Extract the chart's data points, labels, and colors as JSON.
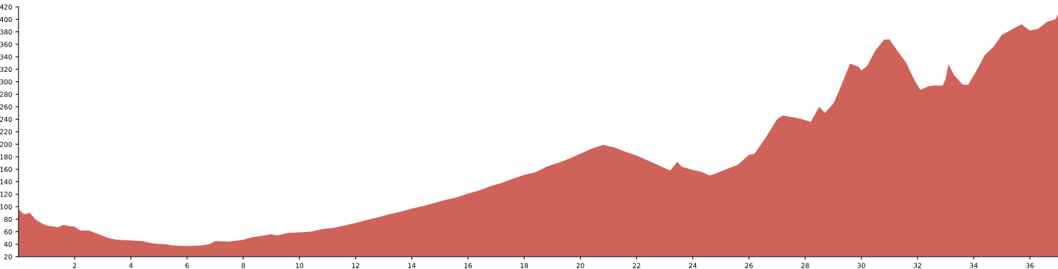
{
  "chart_data": {
    "type": "area",
    "color": "#cf635a",
    "grid": false,
    "legend": false,
    "xlim": [
      0,
      37
    ],
    "xticks": [
      2,
      4,
      6,
      8,
      10,
      12,
      14,
      16,
      18,
      20,
      22,
      24,
      26,
      28,
      30,
      32,
      34,
      36
    ],
    "ylim": [
      20,
      420
    ],
    "yticks": [
      20,
      40,
      60,
      80,
      100,
      120,
      140,
      160,
      180,
      200,
      220,
      240,
      260,
      280,
      300,
      320,
      340,
      360,
      380,
      400,
      420
    ],
    "x": [
      0,
      0.2,
      0.4,
      0.6,
      0.8,
      1.0,
      1.4,
      1.6,
      1.8,
      2.0,
      2.2,
      2.5,
      2.8,
      3.2,
      3.5,
      4.0,
      4.4,
      4.8,
      5.2,
      5.5,
      6.0,
      6.5,
      6.8,
      7.0,
      7.5,
      8.0,
      8.3,
      8.6,
      9.0,
      9.2,
      9.6,
      10.0,
      10.4,
      10.8,
      11.2,
      11.6,
      12.0,
      12.4,
      12.8,
      13.2,
      13.6,
      14.0,
      14.4,
      14.8,
      15.2,
      15.6,
      16.0,
      16.4,
      16.8,
      17.2,
      17.6,
      18.0,
      18.4,
      18.8,
      19.2,
      19.6,
      20.0,
      20.4,
      20.8,
      21.2,
      21.6,
      22.0,
      22.4,
      22.8,
      23.0,
      23.2,
      23.45,
      23.6,
      24.0,
      24.3,
      24.6,
      24.8,
      25.2,
      25.6,
      26.0,
      26.2,
      26.6,
      27.0,
      27.2,
      27.6,
      27.9,
      28.2,
      28.5,
      28.7,
      29.0,
      29.2,
      29.6,
      29.9,
      30.0,
      30.2,
      30.5,
      30.8,
      31.0,
      31.2,
      31.6,
      31.9,
      32.1,
      32.4,
      32.6,
      32.9,
      33.0,
      33.1,
      33.3,
      33.6,
      33.8,
      34.1,
      34.4,
      34.7,
      35.0,
      35.4,
      35.7,
      36.0,
      36.3,
      36.6,
      36.9,
      37.0
    ],
    "values": [
      96,
      88,
      90,
      80,
      74,
      70,
      67,
      71,
      69,
      68,
      62,
      62,
      57,
      50,
      47,
      46,
      45,
      41,
      40,
      38,
      37,
      38,
      40,
      45,
      44,
      47,
      51,
      53,
      56,
      54,
      58,
      59,
      60,
      64,
      66,
      70,
      74,
      79,
      83,
      88,
      92,
      97,
      101,
      106,
      111,
      115,
      121,
      126,
      133,
      138,
      145,
      151,
      155,
      164,
      170,
      177,
      185,
      193,
      199,
      195,
      188,
      182,
      174,
      166,
      162,
      158,
      172,
      164,
      159,
      156,
      150,
      153,
      160,
      167,
      183,
      185,
      211,
      240,
      246,
      243,
      240,
      236,
      260,
      250,
      265,
      285,
      329,
      324,
      318,
      325,
      350,
      367,
      368,
      355,
      330,
      302,
      287,
      293,
      294,
      294,
      305,
      328,
      311,
      296,
      295,
      318,
      343,
      356,
      375,
      385,
      392,
      382,
      385,
      396,
      400,
      408
    ]
  }
}
